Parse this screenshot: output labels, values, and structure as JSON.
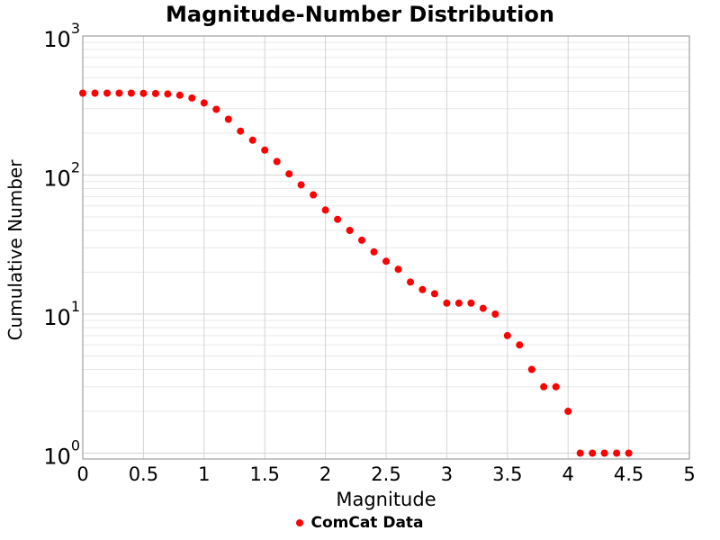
{
  "chart_data": {
    "type": "scatter",
    "title": "Magnitude-Number Distribution",
    "xlabel": "Magnitude",
    "ylabel": "Cumulative Number",
    "x_scale": "linear",
    "y_scale": "log",
    "xlim": [
      0,
      5
    ],
    "ylim": [
      0.9,
      1000
    ],
    "x_ticks": [
      0,
      0.5,
      1,
      1.5,
      2,
      2.5,
      3,
      3.5,
      4,
      4.5,
      5
    ],
    "x_tick_labels": [
      "0",
      "0.5",
      "1",
      "1.5",
      "2",
      "2.5",
      "3",
      "3.5",
      "4",
      "4.5",
      "5"
    ],
    "y_tick_exponents": [
      0,
      1,
      2,
      3
    ],
    "grid": {
      "vertical_major": true,
      "horizontal_major": true,
      "horizontal_log_minor": true
    },
    "legend": {
      "position": "bottom-center",
      "entries": [
        {
          "label": "ComCat Data",
          "marker": "circle",
          "color": "#ff0000"
        }
      ]
    },
    "series": [
      {
        "name": "ComCat Data",
        "marker": "circle",
        "marker_diameter_px": 8,
        "color": "#ff0000",
        "x": [
          0.0,
          0.1,
          0.2,
          0.3,
          0.4,
          0.5,
          0.6,
          0.7,
          0.8,
          0.9,
          1.0,
          1.1,
          1.2,
          1.3,
          1.4,
          1.5,
          1.6,
          1.7,
          1.8,
          1.9,
          2.0,
          2.1,
          2.2,
          2.3,
          2.4,
          2.5,
          2.6,
          2.7,
          2.8,
          2.9,
          3.0,
          3.1,
          3.2,
          3.3,
          3.4,
          3.5,
          3.6,
          3.7,
          3.8,
          3.9,
          4.0,
          4.1,
          4.2,
          4.3,
          4.4,
          4.5
        ],
        "y": [
          388,
          388,
          388,
          388,
          388,
          387,
          386,
          383,
          375,
          358,
          330,
          297,
          252,
          207,
          178,
          151,
          125,
          102,
          85,
          72,
          56,
          48,
          40,
          34,
          28,
          24,
          21,
          17,
          15,
          14,
          12,
          12,
          12,
          11,
          10,
          7,
          6,
          4,
          3,
          3,
          2,
          1,
          1,
          1,
          1,
          1
        ]
      }
    ],
    "colors": {
      "marker": "#ff0000",
      "grid_minor": "#e9e9e9",
      "grid_major": "#d4d4d4",
      "frame": "#a0a0a0",
      "text": "#000000"
    }
  }
}
